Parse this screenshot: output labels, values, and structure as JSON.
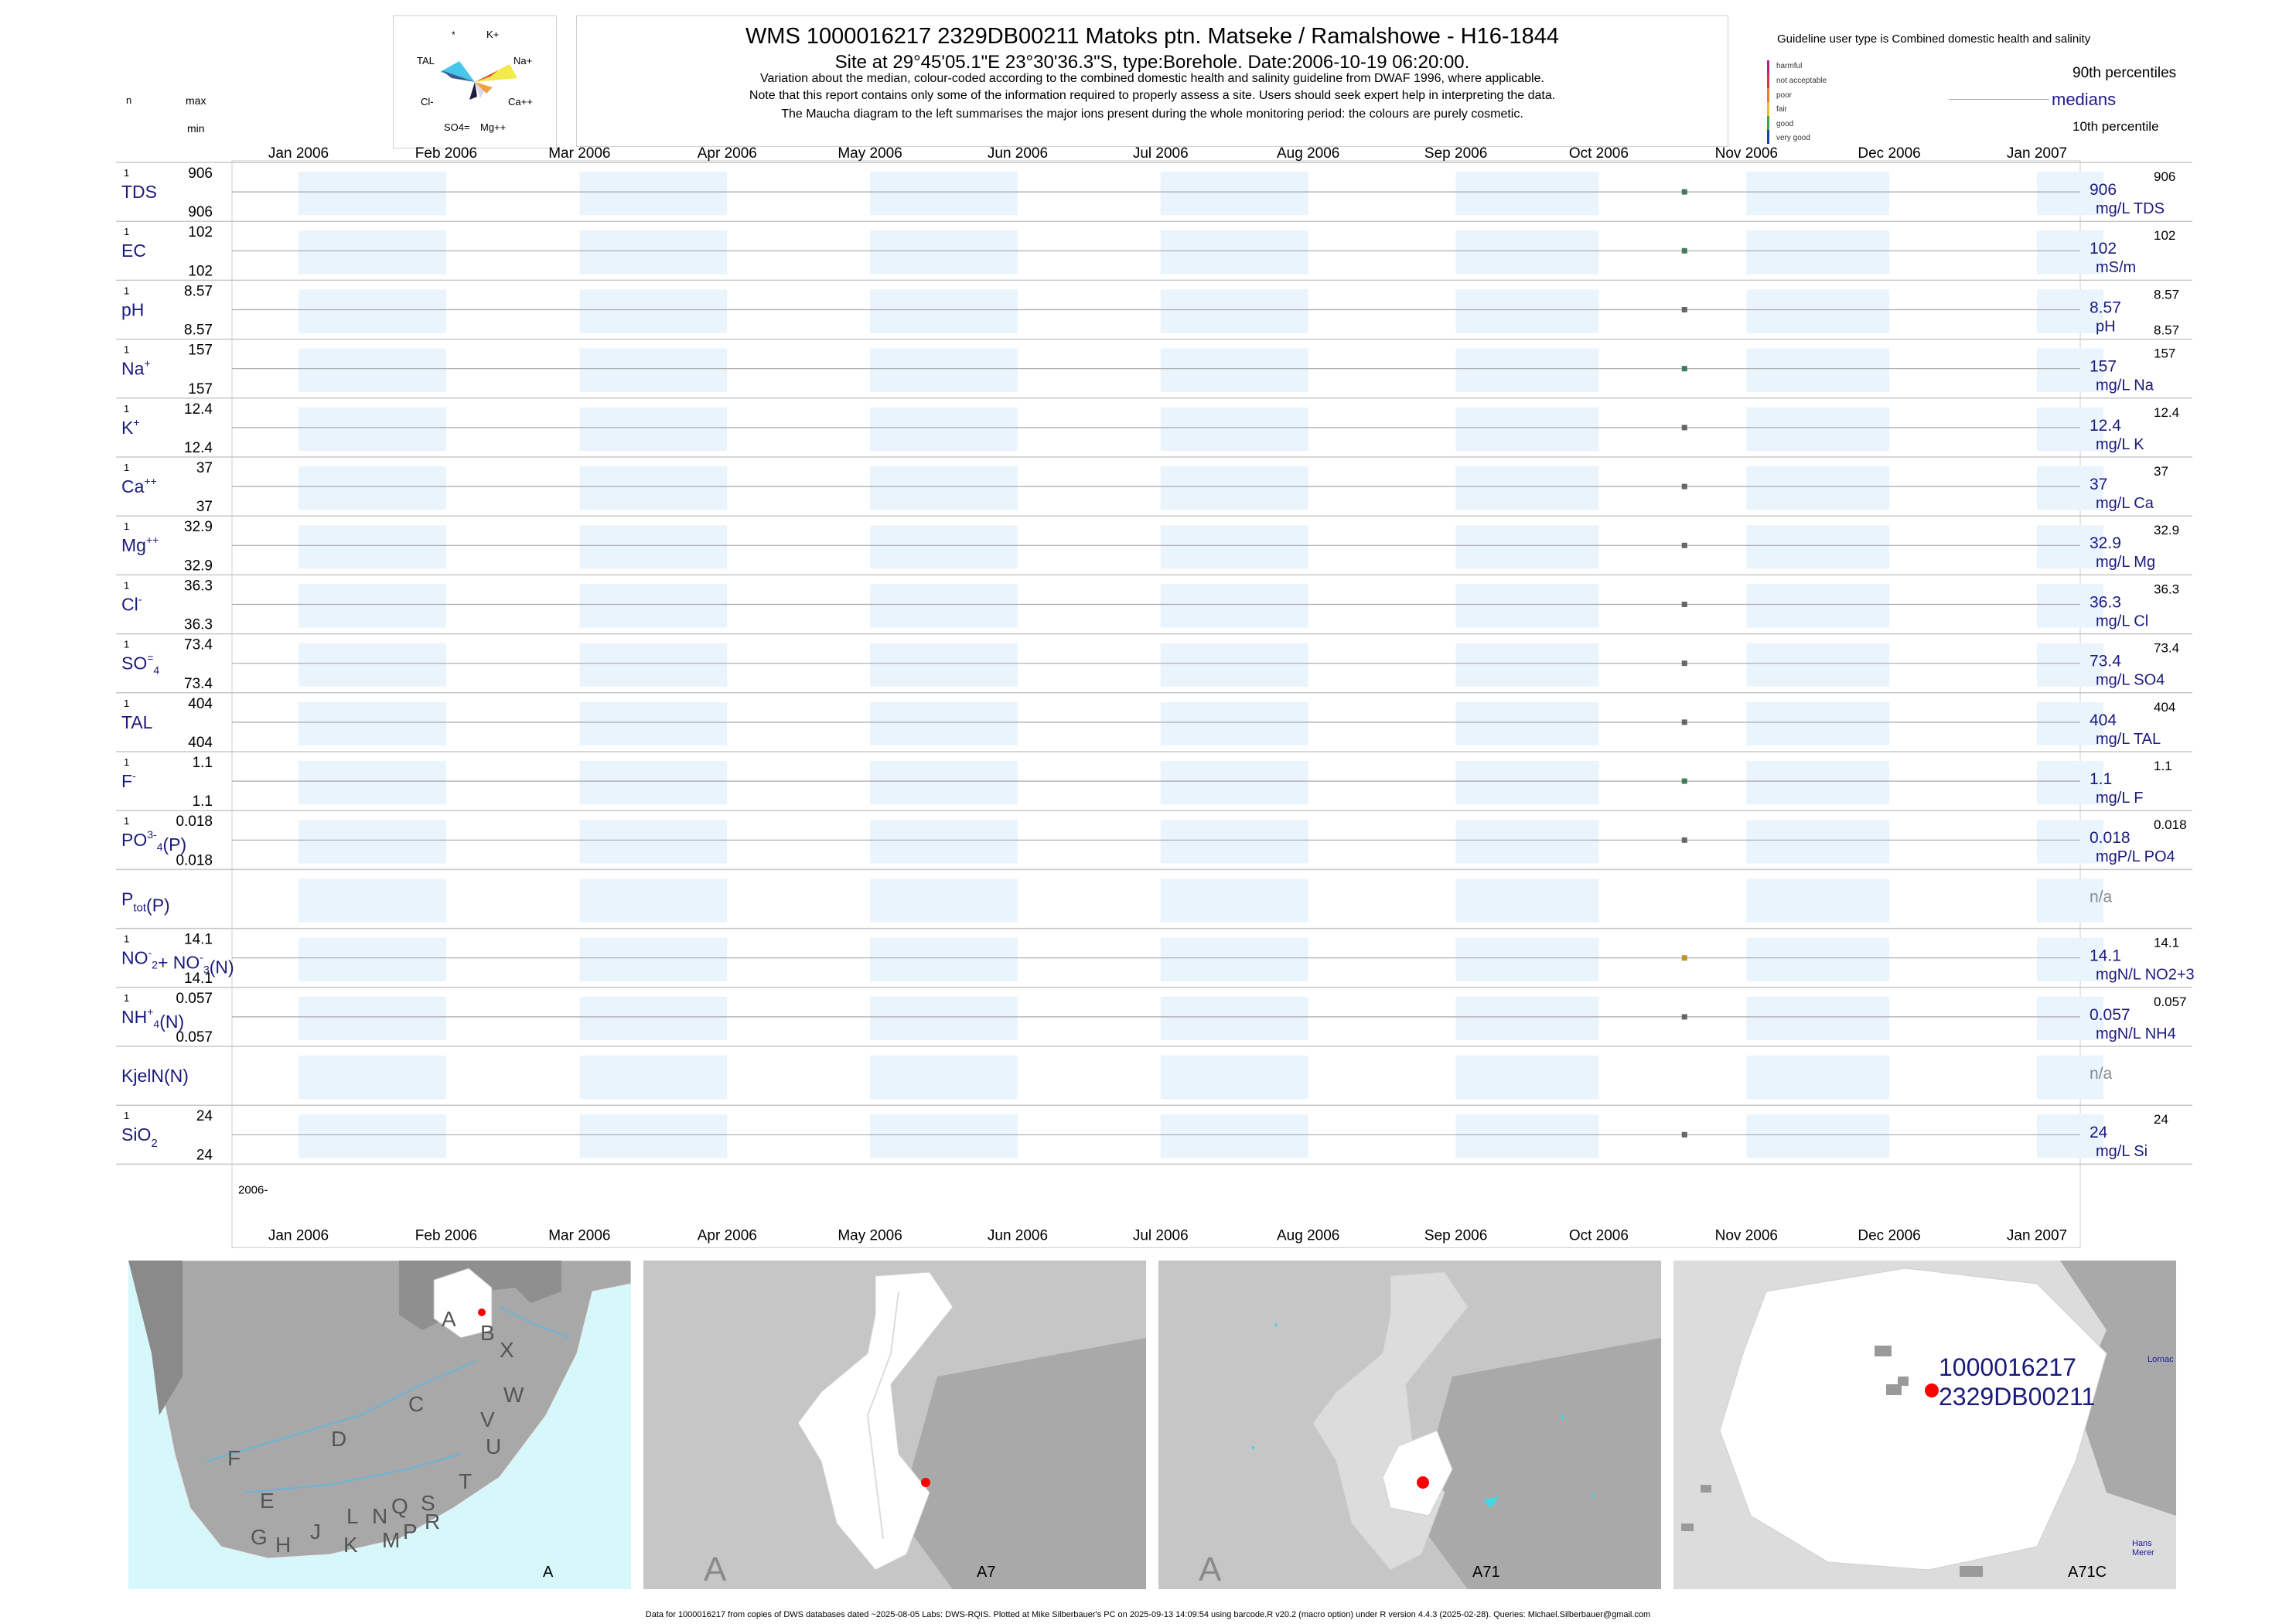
{
  "header": {
    "title": "WMS 1000016217 2329DB00211 Matoks ptn. Matseke / Ramalshowe - H16-1844",
    "subtitle": "Site at 29°45'05.1\"E 23°30'36.3\"S, type:Borehole. Date:2006-10-19 06:20:00.",
    "note1": "Variation about the median,  colour-coded according to the combined domestic health and salinity guideline from DWAF 1996, where applicable.",
    "note2": "Note that this report contains only some of the information required to properly assess a site. Users should seek expert help in interpreting the data.",
    "note3": "The Maucha diagram to the left summarises the major ions present during the whole monitoring period: the colours are purely cosmetic."
  },
  "maucha": {
    "labels": [
      "*",
      "K+",
      "TAL",
      "Na+",
      "Cl-",
      "Ca++",
      "SO4=",
      "Mg++"
    ],
    "colors": [
      "#46c6e8",
      "#f2e94a",
      "#3e5a8f",
      "#e14d4d",
      "#f4a6d8",
      "#1f1f3f",
      "#d9d9f0",
      "#f5a040"
    ]
  },
  "legend": {
    "guideline_text": "Guideline user type is Combined domestic health and salinity",
    "p90_label": "90th percentiles",
    "median_label": "medians",
    "p10_label": "10th percentile",
    "classes": [
      {
        "name": "harmful",
        "color": "#c11a82"
      },
      {
        "name": "not acceptable",
        "color": "#d9304a"
      },
      {
        "name": "poor",
        "color": "#e87c2a"
      },
      {
        "name": "fair",
        "color": "#e8c021"
      },
      {
        "name": "good",
        "color": "#3aa447"
      },
      {
        "name": "very good",
        "color": "#1e3ba8"
      }
    ]
  },
  "left_header": {
    "n": "n",
    "max": "max",
    "min": "min"
  },
  "chart_data": {
    "type": "scatter",
    "x_axis": {
      "labels": [
        "Jan 2006",
        "Feb 2006",
        "Mar 2006",
        "Apr 2006",
        "May 2006",
        "Jun 2006",
        "Jul 2006",
        "Aug 2006",
        "Sep 2006",
        "Oct 2006",
        "Nov 2006",
        "Dec 2006",
        "Jan 2007"
      ],
      "range": [
        "2006-01-01",
        "2007-01-01"
      ],
      "year_label": "2006-"
    },
    "sample_date": "2006-10-19",
    "rows": [
      {
        "name": "TDS",
        "n": "1",
        "max": "906",
        "min": "906",
        "median": "906",
        "unit": "mg/L TDS",
        "p90": "906",
        "p10": "",
        "value": 906,
        "color": "#3f7b5b"
      },
      {
        "name": "EC",
        "n": "1",
        "max": "102",
        "min": "102",
        "median": "102",
        "unit": "mS/m",
        "p90": "102",
        "p10": "",
        "value": 102,
        "color": "#3f7b5b"
      },
      {
        "name": "pH",
        "n": "1",
        "max": "8.57",
        "min": "8.57",
        "median": "8.57",
        "unit": "pH",
        "p90": "8.57",
        "p10": "8.57",
        "value": 8.57,
        "color": "#666666"
      },
      {
        "name": "Na",
        "sup": "+",
        "n": "1",
        "max": "157",
        "min": "157",
        "median": "157",
        "unit": "mg/L Na",
        "p90": "157",
        "p10": "",
        "value": 157,
        "color": "#3f7b5b"
      },
      {
        "name": "K",
        "sup": "+",
        "n": "1",
        "max": "12.4",
        "min": "12.4",
        "median": "12.4",
        "unit": "mg/L K",
        "p90": "12.4",
        "p10": "",
        "value": 12.4,
        "color": "#666666"
      },
      {
        "name": "Ca",
        "sup": "++",
        "n": "1",
        "max": "37",
        "min": "37",
        "median": "37",
        "unit": "mg/L Ca",
        "p90": "37",
        "p10": "",
        "value": 37,
        "color": "#666666"
      },
      {
        "name": "Mg",
        "sup": "++",
        "n": "1",
        "max": "32.9",
        "min": "32.9",
        "median": "32.9",
        "unit": "mg/L Mg",
        "p90": "32.9",
        "p10": "",
        "value": 32.9,
        "color": "#666666"
      },
      {
        "name": "Cl",
        "sup": "-",
        "n": "1",
        "max": "36.3",
        "min": "36.3",
        "median": "36.3",
        "unit": "mg/L Cl",
        "p90": "36.3",
        "p10": "",
        "value": 36.3,
        "color": "#666666"
      },
      {
        "name": "SO",
        "sub": "4",
        "sup": "=",
        "n": "1",
        "max": "73.4",
        "min": "73.4",
        "median": "73.4",
        "unit": "mg/L SO4",
        "p90": "73.4",
        "p10": "",
        "value": 73.4,
        "color": "#666666"
      },
      {
        "name": "TAL",
        "n": "1",
        "max": "404",
        "min": "404",
        "median": "404",
        "unit": "mg/L TAL",
        "p90": "404",
        "p10": "",
        "value": 404,
        "color": "#666666"
      },
      {
        "name": "F",
        "sup": "-",
        "n": "1",
        "max": "1.1",
        "min": "1.1",
        "median": "1.1",
        "unit": "mg/L F",
        "p90": "1.1",
        "p10": "",
        "value": 1.1,
        "color": "#3f7b5b"
      },
      {
        "name": "PO",
        "sub": "4",
        "sup": "3-",
        "suffix": "(P)",
        "n": "1",
        "max": "0.018",
        "min": "0.018",
        "median": "0.018",
        "unit": "mgP/L PO4",
        "p90": "0.018",
        "p10": "",
        "value": 0.018,
        "color": "#666666"
      },
      {
        "name": "P",
        "sub": "tot",
        "suffix": "(P)",
        "n": "",
        "max": "",
        "min": "",
        "median": "n/a",
        "unit": "",
        "p90": "",
        "p10": "",
        "value": null,
        "color": "#666666"
      },
      {
        "name": "NO",
        "sub": "2",
        "sup": "-",
        "suffix": "+ NO",
        "sub2": "3",
        "sup2": "-",
        "suffix2": "(N)",
        "n": "1",
        "max": "14.1",
        "min": "14.1",
        "median": "14.1",
        "unit": "mgN/L NO2+3",
        "p90": "14.1",
        "p10": "",
        "value": 14.1,
        "color": "#b8962a"
      },
      {
        "name": "NH",
        "sub": "4",
        "sup": "+",
        "suffix": "(N)",
        "n": "1",
        "max": "0.057",
        "min": "0.057",
        "median": "0.057",
        "unit": "mgN/L NH4",
        "p90": "0.057",
        "p10": "",
        "value": 0.057,
        "color": "#666666"
      },
      {
        "name": "KjelN(N)",
        "n": "",
        "max": "",
        "min": "",
        "median": "n/a",
        "unit": "",
        "p90": "",
        "p10": "",
        "value": null,
        "color": "#666666"
      },
      {
        "name": "SiO",
        "sub": "2",
        "n": "1",
        "max": "24",
        "min": "24",
        "median": "24",
        "unit": "mg/L Si",
        "p90": "24",
        "p10": "",
        "value": 24,
        "color": "#666666"
      }
    ]
  },
  "maps": {
    "panel1": {
      "label": "A",
      "regions": [
        "A",
        "B",
        "X",
        "C",
        "W",
        "D",
        "V",
        "U",
        "F",
        "T",
        "E",
        "G",
        "H",
        "J",
        "K",
        "L",
        "M",
        "N",
        "P",
        "Q",
        "R",
        "S"
      ]
    },
    "panel2": {
      "label": "A7",
      "big_letter": "A"
    },
    "panel3": {
      "label": "A71",
      "big_letter": "A"
    },
    "panel4": {
      "label": "A71C",
      "site_id": "1000016217",
      "site_code": "2329DB00211",
      "place1": "Lornac",
      "place2": "Hans Merer"
    }
  },
  "footer": "Data for 1000016217 from copies of DWS databases dated ~2025-08-05 Labs: DWS-RQIS. Plotted at Mike Silberbauer's PC on 2025-09-13 14:09:54 using barcode.R v20.2 (macro option) under R version 4.4.3 (2025-02-28). Queries: Michael.Silberbauer@gmail.com"
}
